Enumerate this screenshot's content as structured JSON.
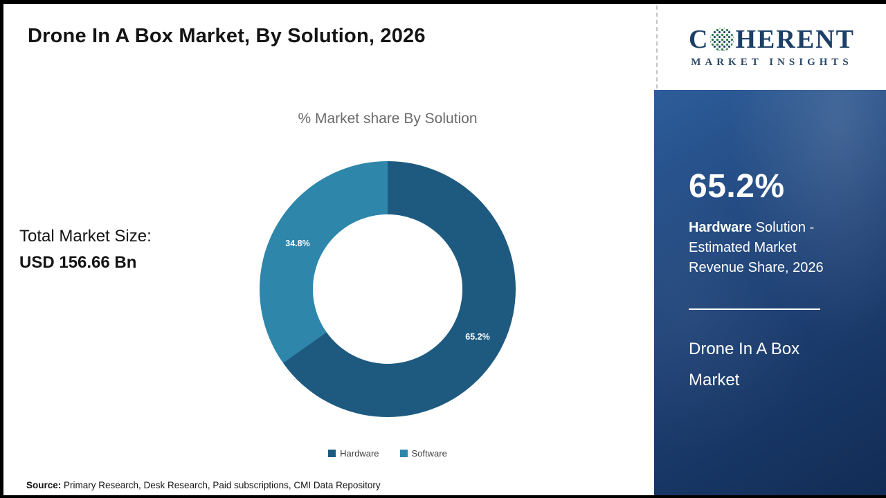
{
  "header": {
    "title": "Drone In A Box Market, By Solution, 2026"
  },
  "logo": {
    "prefix": "C",
    "suffix": "HERENT",
    "subtitle": "MARKET INSIGHTS"
  },
  "chart_data": {
    "type": "pie",
    "donut": true,
    "title": "% Market share By Solution",
    "categories": [
      "Hardware",
      "Software"
    ],
    "values": [
      65.2,
      34.8
    ],
    "labels": [
      "65.2%",
      "34.8%"
    ],
    "colors": [
      "#1e5a80",
      "#2e86ab"
    ],
    "legend_position": "bottom"
  },
  "total": {
    "label": "Total Market Size:",
    "value": "USD 156.66 Bn"
  },
  "panel": {
    "stat": "65.2%",
    "desc_bold": "Hardware",
    "desc_rest": " Solution - Estimated Market Revenue Share, 2026",
    "name": "Drone In A Box Market",
    "bg_color": "#1e4277"
  },
  "source": {
    "label": "Source:",
    "text": " Primary Research, Desk Research, Paid subscriptions, CMI Data Repository"
  }
}
